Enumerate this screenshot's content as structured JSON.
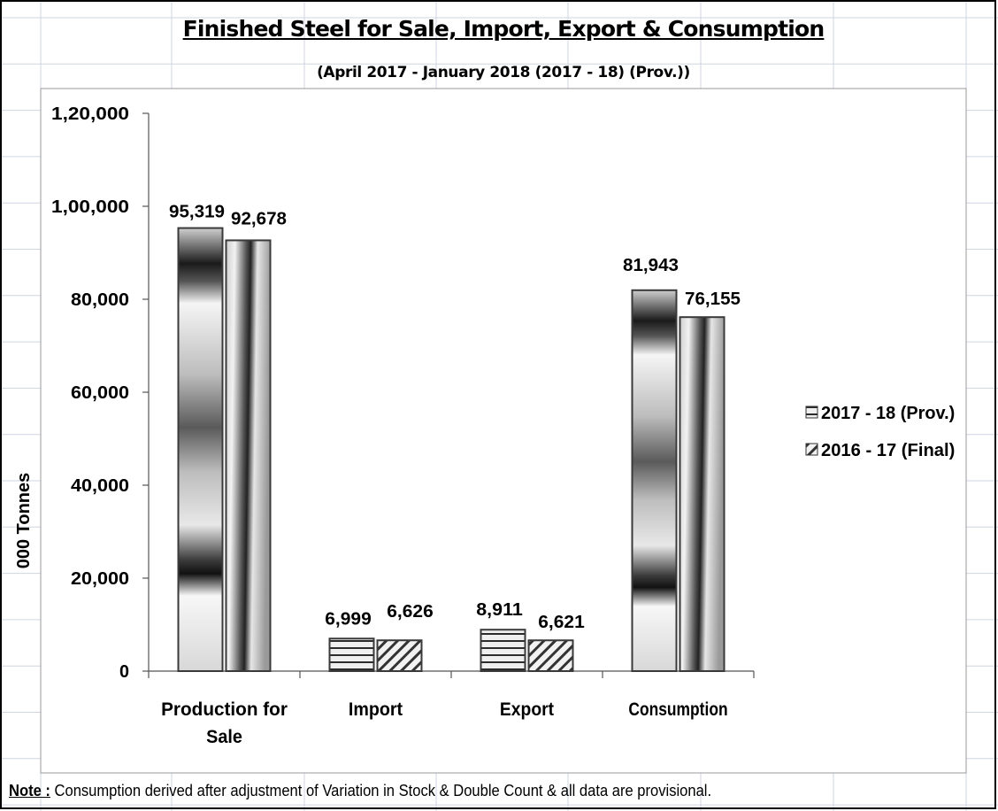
{
  "chart_data": {
    "type": "bar",
    "title": "Finished Steel for Sale, Import, Export & Consumption",
    "subtitle": "(April 2017 - January 2018 (2017 - 18) (Prov.))",
    "ylabel": "000 Tonnes",
    "xlabel": "",
    "ylim": [
      0,
      120000
    ],
    "yticks": [
      0,
      20000,
      40000,
      60000,
      80000,
      100000,
      120000
    ],
    "ytick_labels": [
      "0",
      "20,000",
      "40,000",
      "60,000",
      "80,000",
      "1,00,000",
      "1,20,000"
    ],
    "categories": [
      "Production for Sale",
      "Import",
      "Export",
      "Consumption"
    ],
    "category_label_lines": [
      [
        "Production for",
        "Sale"
      ],
      [
        "Import"
      ],
      [
        "Export"
      ],
      [
        "Consumption"
      ]
    ],
    "series": [
      {
        "name": "2017 - 18 (Prov.)",
        "values": [
          95319,
          6999,
          8911,
          81943
        ],
        "labels": [
          "95,319",
          "6,999",
          "8,911",
          "81,943"
        ]
      },
      {
        "name": "2016 - 17 (Final)",
        "values": [
          92678,
          6626,
          6621,
          76155
        ],
        "labels": [
          "92,678",
          "6,626",
          "6,621",
          "76,155"
        ]
      }
    ],
    "legend_position": "right",
    "grid": false
  },
  "note": {
    "label": "Note :",
    "text": " Consumption derived after adjustment of Variation in Stock & Double Count & all data are provisional."
  },
  "colors": {
    "bar_outline": "#3a3a3a",
    "sheet_gridline": "#cfd6e0",
    "frame": "#000000"
  }
}
